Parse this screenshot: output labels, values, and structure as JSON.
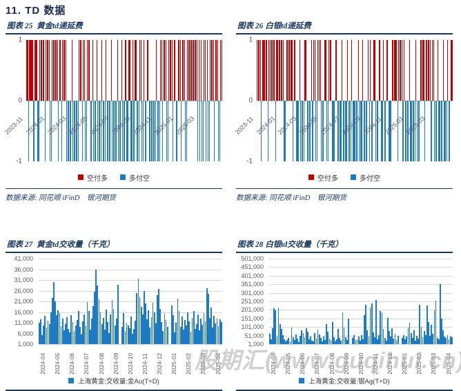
{
  "page": {
    "heading": "11.  TD 数据",
    "watermark": "股期汇(www.guqihui.cn)"
  },
  "colors": {
    "red": "#C00000",
    "blue": "#1F7AC4",
    "navy": "#17375E",
    "grid": "#D9D9D9",
    "axis_text": "#595959"
  },
  "figures": [
    {
      "title": "图表 25  黄金td递延费",
      "legend": [
        "空付多",
        "多付空"
      ],
      "source": "数据来源: 同花顺 iFinD    银河期货"
    },
    {
      "title": "图表 26 白银td递延费",
      "legend": [
        "空付多",
        "多付空"
      ],
      "source": "数据来源: 同花顺 iFinD    银河期货"
    },
    {
      "title": "图表 27  黄金td交收量（千克）",
      "legend": [
        "上海黄金:交收量:金Au(T+D)"
      ]
    },
    {
      "title": "图表 28 白银td交收量（千克）",
      "legend": [
        "上海黄金:交收量:银Ag(T+D)"
      ]
    }
  ],
  "chart_data": [
    {
      "type": "bar",
      "title": "黄金td递延费",
      "ylim": [
        -1,
        1
      ],
      "ylabels": [
        "1",
        "0",
        "-1"
      ],
      "xticks": [
        "2023-11",
        "2024-01",
        "2024-03",
        "2024-05",
        "2024-07",
        "2024-09",
        "2024-11",
        "2025-01",
        "2025-03"
      ],
      "legend": [
        {
          "name": "空付多",
          "value": 1,
          "color": "#C00000"
        },
        {
          "name": "多付空",
          "value": -1,
          "color": "#1F7AC4"
        }
      ],
      "pattern_key": {
        "R": "空付多 (+1)",
        "B": "多付空 (-1)"
      },
      "pattern": "RRBRRRRBRRRBBRRRRRBRRRRBBRRRRRRBRRBRRRRBBBBBRBBBBBBRRRBRRBBRRRBBRBBBRBBBBRBBBRBBBBRBBBBBRBBBRBBBRBBRRBBRBRRBBBRRBBRBBRRBBBBBBBRBBBRRBRRRBBRRRRBRRBBRRRBRRRBBRRRRRRRRRRBRBRBBRRBRBBRRRRBRRRBBRR"
    },
    {
      "type": "bar",
      "title": "白银td递延费",
      "ylim": [
        -1,
        1
      ],
      "ylabels": [
        "1",
        "0",
        "-1"
      ],
      "xticks": [
        "2023-11",
        "2024-01",
        "2024-03",
        "2024-05",
        "2024-07",
        "2024-09",
        "2024-11",
        "2025-01",
        "2025-03"
      ],
      "legend": [
        {
          "name": "空付多",
          "value": 1,
          "color": "#C00000"
        },
        {
          "name": "多付空",
          "value": -1,
          "color": "#1F7AC4"
        }
      ],
      "pattern_key": {
        "R": "空付多 (+1)",
        "B": "多付空 (-1)"
      },
      "pattern": "RRRRBRRRRRBRRRRRRBRRRRRRRBBRRRRRRBRRBBBRBBBBRRBBBBRBRRBBRRRBBBRRBBRRRBBBRRBBBBRBBBBRBBBRBBBBBRBBBRBBBBRBRBBRRBBBRRBBRBBRRBBBRRRRRBRRRRBRBBBBRBBBBBRBBBRRRRBRRRRRBRRBBBRBBBBRBBBRBBRR"
    },
    {
      "type": "bar",
      "title": "黄金td交收量（千克）",
      "ylim": [
        1000,
        41000
      ],
      "yticks": [
        "41,000",
        "36,000",
        "31,000",
        "26,000",
        "21,000",
        "16,000",
        "11,000",
        "6,000",
        "1,000"
      ],
      "xticks": [
        "2024-04",
        "2024-05",
        "2024-06",
        "2024-07",
        "2024-08",
        "2024-09",
        "2024-10",
        "2024-11",
        "2024-12",
        "2025-01",
        "2025-02",
        "2025-03",
        "2025-04"
      ],
      "series_name": "上海黄金:交收量:金Au(T+D)",
      "values": [
        11000,
        12500,
        5200,
        9800,
        14200,
        8600,
        12000,
        10200,
        16000,
        22500,
        30000,
        21000,
        14500,
        16800,
        15600,
        9400,
        12800,
        7600,
        10400,
        13600,
        8200,
        6400,
        14400,
        11200,
        7000,
        9800,
        12400,
        16400,
        9000,
        5600,
        11800,
        15000,
        9600,
        20800,
        16600,
        7800,
        13000,
        18800,
        25500,
        36000,
        28500,
        22000,
        15800,
        10200,
        13400,
        7800,
        17000,
        11400,
        6200,
        14800,
        21800,
        17600,
        9800,
        12800,
        28800,
        0,
        0,
        9000,
        15600,
        7200,
        10600,
        9800,
        8400,
        14000,
        5800,
        8000,
        12000,
        24800,
        31500,
        22800,
        18400,
        14800,
        25800,
        20000,
        12600,
        16800,
        8600,
        13600,
        20400,
        16000,
        10800,
        24000,
        26800,
        17600,
        11200,
        7200,
        15200,
        12400,
        9200,
        0,
        0,
        19000,
        14400,
        6600,
        11000,
        22200,
        16600,
        9000,
        13800,
        7800,
        12200,
        9600,
        15800,
        11600,
        6800,
        13200,
        16400,
        8200,
        10400,
        15000,
        7400,
        12800,
        10000,
        15400,
        11800,
        27200,
        24400,
        13400,
        18000,
        8800,
        14200,
        10600,
        13000,
        9400,
        12600,
        11200
      ]
    },
    {
      "type": "bar",
      "title": "白银td交收量（千克）",
      "ylim": [
        1000,
        501000
      ],
      "yticks": [
        "501,000",
        "451,000",
        "401,000",
        "351,000",
        "301,000",
        "251,000",
        "201,000",
        "151,000",
        "101,000",
        "51,000",
        "1,000"
      ],
      "xticks": [
        "2024-04",
        "2024-05",
        "2024-06",
        "2024-07",
        "2024-08",
        "2024-09",
        "2024-10",
        "2024-11",
        "2024-12",
        "2025-01",
        "2025-02",
        "2025-03",
        "2025-04"
      ],
      "series_name": "上海黄金:交收量:银Ag(T+D)",
      "values": [
        60000,
        28000,
        95000,
        210000,
        200000,
        45000,
        215000,
        120000,
        88000,
        52000,
        30000,
        18000,
        24000,
        38000,
        16000,
        98000,
        42000,
        26000,
        56000,
        34000,
        14000,
        48000,
        82000,
        66000,
        40000,
        92000,
        74000,
        30000,
        46000,
        22000,
        16000,
        64000,
        32000,
        86000,
        56000,
        38000,
        18000,
        44000,
        26000,
        120000,
        72000,
        34000,
        24000,
        130000,
        40000,
        16000,
        28000,
        90000,
        38000,
        20000,
        185000,
        96000,
        42000,
        26000,
        150000,
        0,
        0,
        36000,
        52000,
        24000,
        30000,
        44000,
        22000,
        52000,
        30000,
        170000,
        230000,
        80000,
        46000,
        215000,
        240000,
        68000,
        40000,
        260000,
        30000,
        54000,
        195000,
        185000,
        90000,
        36000,
        20000,
        155000,
        78000,
        44000,
        92000,
        32000,
        60000,
        24000,
        48000,
        0,
        0,
        36000,
        54000,
        30000,
        46000,
        98000,
        128000,
        64000,
        38000,
        82000,
        20000,
        50000,
        32000,
        230000,
        100000,
        42000,
        76000,
        54000,
        225000,
        132000,
        48000,
        112000,
        62000,
        200000,
        255000,
        38000,
        30000,
        350000,
        150000,
        80000,
        44000,
        36000,
        52000,
        28000,
        46000,
        40000
      ]
    }
  ]
}
